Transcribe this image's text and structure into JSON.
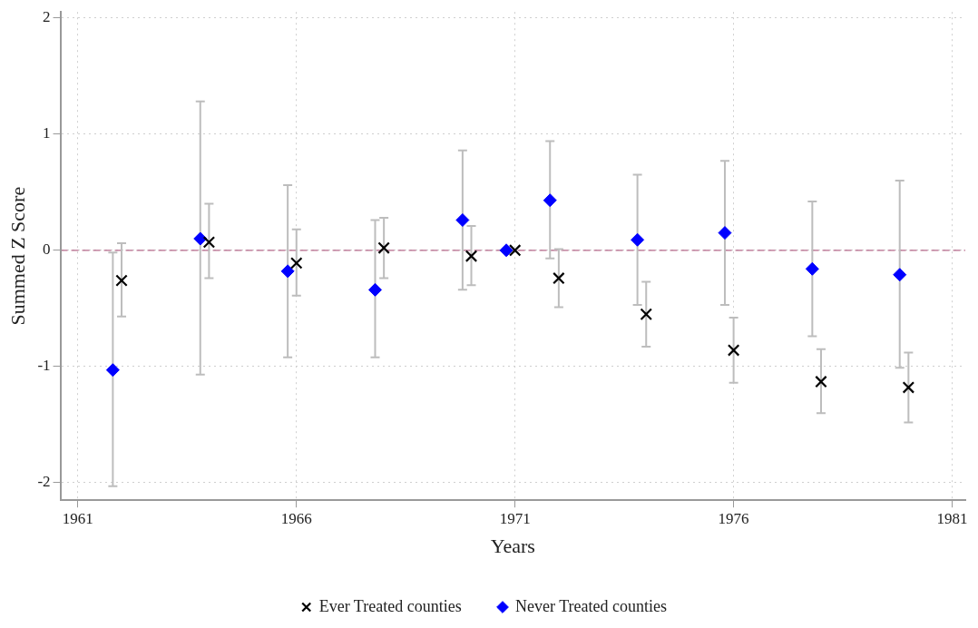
{
  "chart_data": {
    "type": "scatter",
    "xlabel": "Years",
    "ylabel": "Summed Z Score",
    "xlim": [
      1960.6,
      1981.3
    ],
    "ylim": [
      -2.15,
      2.05
    ],
    "xticks": [
      1961,
      1966,
      1971,
      1976,
      1981
    ],
    "yticks": [
      -2,
      -1,
      0,
      1,
      2
    ],
    "grid": true,
    "legend": "bottom",
    "ref_lines": [
      {
        "axis": "y",
        "value": 0,
        "color": "#b5688a",
        "line_style": "dashed"
      }
    ],
    "series": [
      {
        "name": "Ever Treated counties",
        "color": "#000000",
        "marker": "cross",
        "x": [
          1962,
          1964,
          1966,
          1968,
          1970,
          1971,
          1972,
          1974,
          1976,
          1978,
          1980
        ],
        "values": [
          -0.26,
          0.07,
          -0.11,
          0.02,
          -0.05,
          0,
          -0.24,
          -0.55,
          -0.86,
          -1.13,
          -1.18
        ],
        "errors": [
          [
            -0.57,
            0.06
          ],
          [
            -0.24,
            0.4
          ],
          [
            -0.39,
            0.18
          ],
          [
            -0.24,
            0.28
          ],
          [
            -0.3,
            0.21
          ],
          null,
          [
            -0.49,
            0.01
          ],
          [
            -0.83,
            -0.27
          ],
          [
            -1.14,
            -0.58
          ],
          [
            -1.4,
            -0.85
          ],
          [
            -1.48,
            -0.88
          ]
        ]
      },
      {
        "name": "Never Treated counties",
        "color": "#0000ff",
        "marker": "diamond",
        "x": [
          1961.8,
          1963.8,
          1965.8,
          1967.8,
          1969.8,
          1970.8,
          1971.8,
          1973.8,
          1975.8,
          1977.8,
          1979.8
        ],
        "values": [
          -1.03,
          0.1,
          -0.18,
          -0.34,
          0.26,
          0,
          0.43,
          0.09,
          0.15,
          -0.16,
          -0.21
        ],
        "errors": [
          [
            -2.03,
            -0.02
          ],
          [
            -1.07,
            1.28
          ],
          [
            -0.92,
            0.56
          ],
          [
            -0.92,
            0.26
          ],
          [
            -0.34,
            0.86
          ],
          null,
          [
            -0.07,
            0.94
          ],
          [
            -0.47,
            0.65
          ],
          [
            -0.47,
            0.77
          ],
          [
            -0.74,
            0.42
          ],
          [
            -1.01,
            0.6
          ]
        ]
      }
    ]
  }
}
